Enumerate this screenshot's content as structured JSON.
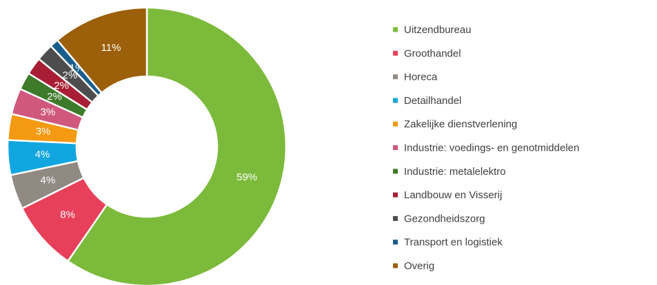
{
  "chart_data": {
    "type": "donut",
    "categories": [
      "Uitzendbureau",
      "Groothandel",
      "Horeca",
      "Detailhandel",
      "Zakelijke dienstverlening",
      "Industrie: voedings- en genotmiddelen",
      "Industrie: metalelektro",
      "Landbouw en Visserij",
      "Gezondheidszorg",
      "Transport en logistiek",
      "Overig"
    ],
    "values": [
      59,
      8,
      4,
      4,
      3,
      3,
      2,
      2,
      2,
      1,
      11
    ],
    "value_labels": [
      "59%",
      "8%",
      "4%",
      "4%",
      "3%",
      "3%",
      "2%",
      "2%",
      "2%",
      "1%",
      "11%"
    ],
    "colors": [
      "#7cba3b",
      "#e8405a",
      "#918a83",
      "#12a6e0",
      "#f39a12",
      "#d0587e",
      "#3d7a2a",
      "#a81e34",
      "#4d4d4d",
      "#1a5e8c",
      "#9c5f0a"
    ],
    "legend": "right"
  }
}
